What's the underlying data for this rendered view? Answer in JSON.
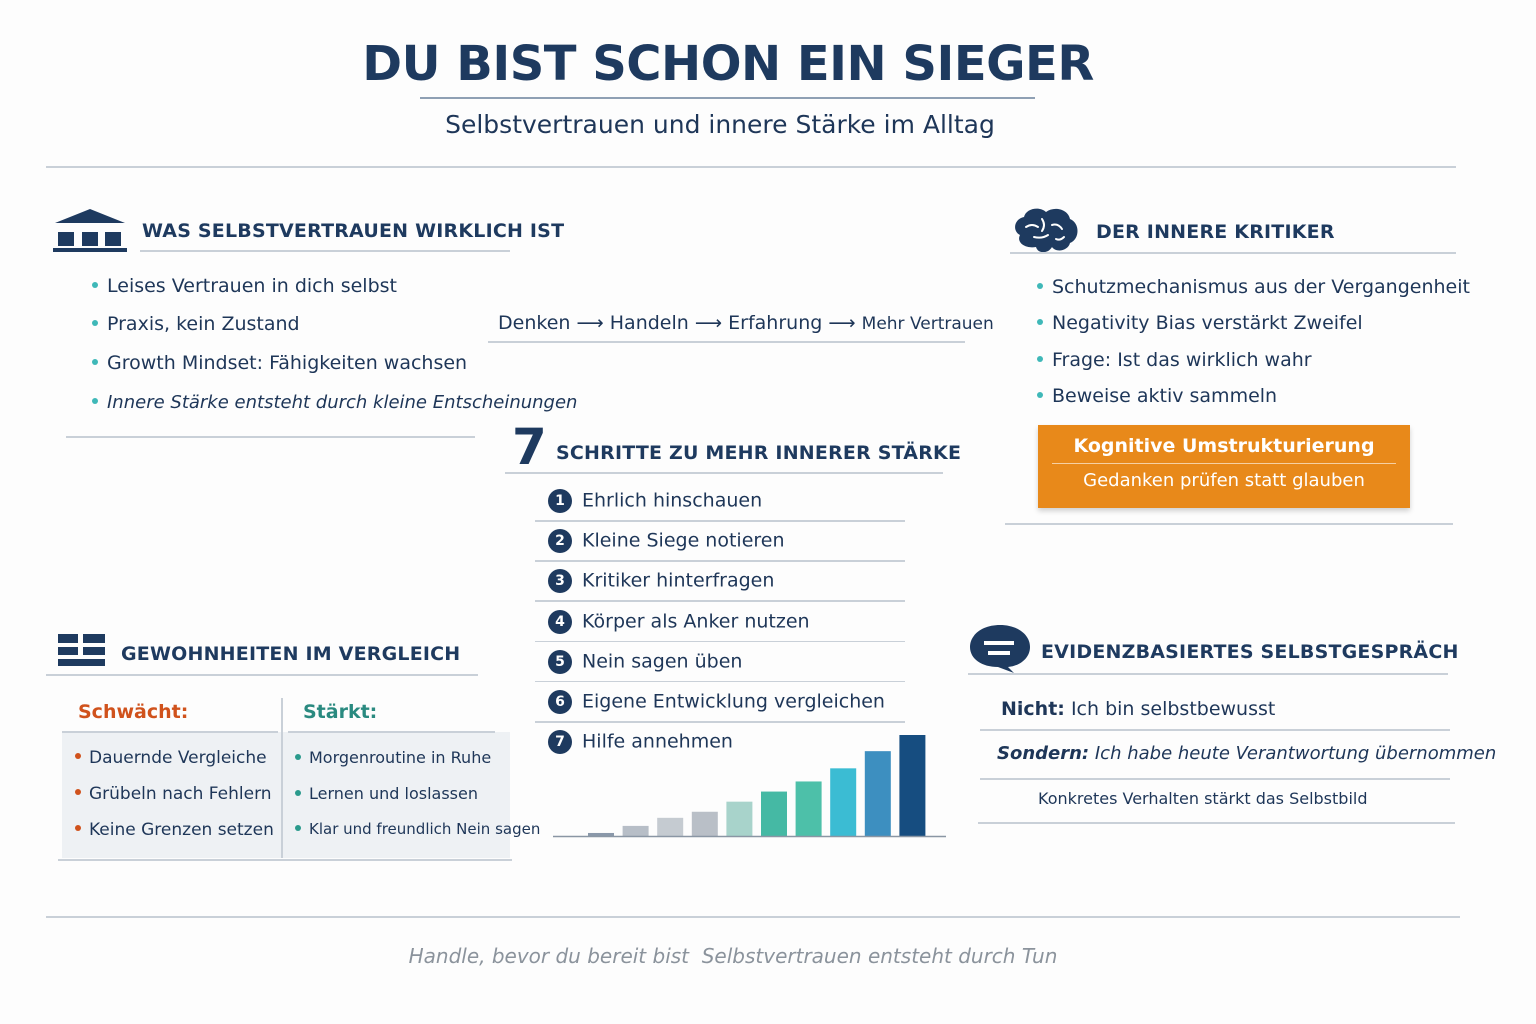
{
  "header": {
    "title": "DU BIST SCHON EIN SIEGER",
    "subtitle": "Selbstvertrauen und innere Stärke im Alltag"
  },
  "colors": {
    "navy": "#1e3a5f",
    "teal": "#3fb8b8",
    "orange": "#e8891a",
    "weak": "#d0521c",
    "strong": "#2a8a80"
  },
  "section_what": {
    "icon": "building-icon",
    "heading": "WAS SELBSTVERTRAUEN WIRKLICH IST",
    "items": [
      "Leises Vertrauen in dich selbst",
      "Praxis, kein Zustand",
      "Growth Mindset: Fähigkeiten wachsen",
      "Innere Stärke entsteht durch kleine Entscheinungen"
    ]
  },
  "flow": {
    "steps": [
      "Denken",
      "Handeln",
      "Erfahrung",
      "Mehr Vertrauen"
    ],
    "arrow": "⟶"
  },
  "section_steps": {
    "big_number": "7",
    "heading": "SCHRITTE ZU MEHR INNERER STÄRKE",
    "items": [
      {
        "num": "1",
        "label": "Ehrlich hinschauen"
      },
      {
        "num": "2",
        "label": "Kleine Siege notieren"
      },
      {
        "num": "3",
        "label": "Kritiker hinterfragen"
      },
      {
        "num": "4",
        "label": "Körper als Anker nutzen"
      },
      {
        "num": "5",
        "label": "Nein sagen üben"
      },
      {
        "num": "6",
        "label": "Eigene Entwicklung vergleichen"
      },
      {
        "num": "7",
        "label": "Hilfe annehmen"
      }
    ]
  },
  "chart_data": {
    "type": "bar",
    "values": [
      3,
      10,
      18,
      24,
      34,
      44,
      54,
      67,
      84,
      100
    ],
    "colors": [
      "#8a98aa",
      "#b7bec7",
      "#c5cbd1",
      "#b9bfc7",
      "#a8d3cb",
      "#45b9a4",
      "#4dc0a9",
      "#3bbcd3",
      "#3d8fc0",
      "#164d80"
    ]
  },
  "section_critic": {
    "icon": "brain-icon",
    "heading": "DER INNERE KRITIKER",
    "items": [
      "Schutzmechanismus aus der Vergangenheit",
      "Negativity Bias verstärkt Zweifel",
      "Frage: Ist das wirklich wahr",
      "Beweise aktiv sammeln"
    ],
    "callout_title": "Kognitive Umstrukturierung",
    "callout_text": "Gedanken prüfen statt glauben"
  },
  "section_habits": {
    "icon": "table-icon",
    "heading": "GEWOHNHEITEN IM VERGLEICH",
    "weak_label": "Schwächt:",
    "weak_items": [
      "Dauernde Vergleiche",
      "Grübeln nach Fehlern",
      "Keine Grenzen setzen"
    ],
    "strong_label": "Stärkt:",
    "strong_items": [
      "Morgenroutine in Ruhe",
      "Lernen und loslassen",
      "Klar und freundlich Nein sagen"
    ]
  },
  "section_selftalk": {
    "icon": "speech-bubble-icon",
    "heading": "EVIDENZBASIERTES SELBSTGESPRÄCH",
    "not_label": "Nicht:",
    "not_text": "Ich bin selbstbewusst",
    "but_label": "Sondern:",
    "but_text": "Ich habe heute Verantwortung übernommen",
    "note": "Konkretes Verhalten stärkt das Selbstbild"
  },
  "footer": {
    "part1": "Handle, bevor du bereit bist",
    "part2": "Selbstvertrauen entsteht durch Tun"
  }
}
